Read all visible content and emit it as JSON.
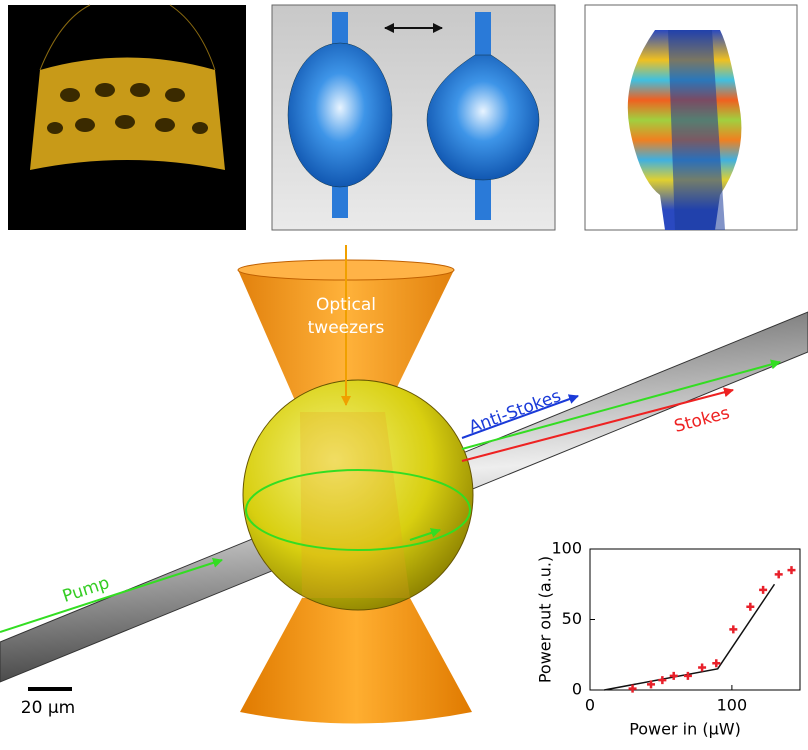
{
  "labels": {
    "optical_tweezers": [
      "Optical",
      "tweezers"
    ],
    "anti_stokes": "Anti-Stokes",
    "stokes": "Stokes",
    "pump": "Pump",
    "scale_bar": "20 µm"
  },
  "chart_data": {
    "type": "scatter",
    "xlabel": "Power in (µW)",
    "ylabel": "Power out (a.u.)",
    "xlim": [
      0,
      148
    ],
    "ylim": [
      0,
      100
    ],
    "xticks": [
      0,
      100
    ],
    "yticks": [
      0,
      50,
      100
    ],
    "series": [
      {
        "type": "scatter",
        "color": "#e8202a",
        "x": [
          30,
          43,
          51,
          59,
          69,
          79,
          89,
          101,
          113,
          122,
          133,
          142
        ],
        "values": [
          1,
          4,
          7,
          10,
          10,
          16,
          19,
          43,
          59,
          71,
          82,
          85
        ]
      },
      {
        "type": "line",
        "color": "#111111",
        "x": [
          10,
          90,
          130
        ],
        "values": [
          0,
          15,
          75
        ]
      }
    ]
  }
}
